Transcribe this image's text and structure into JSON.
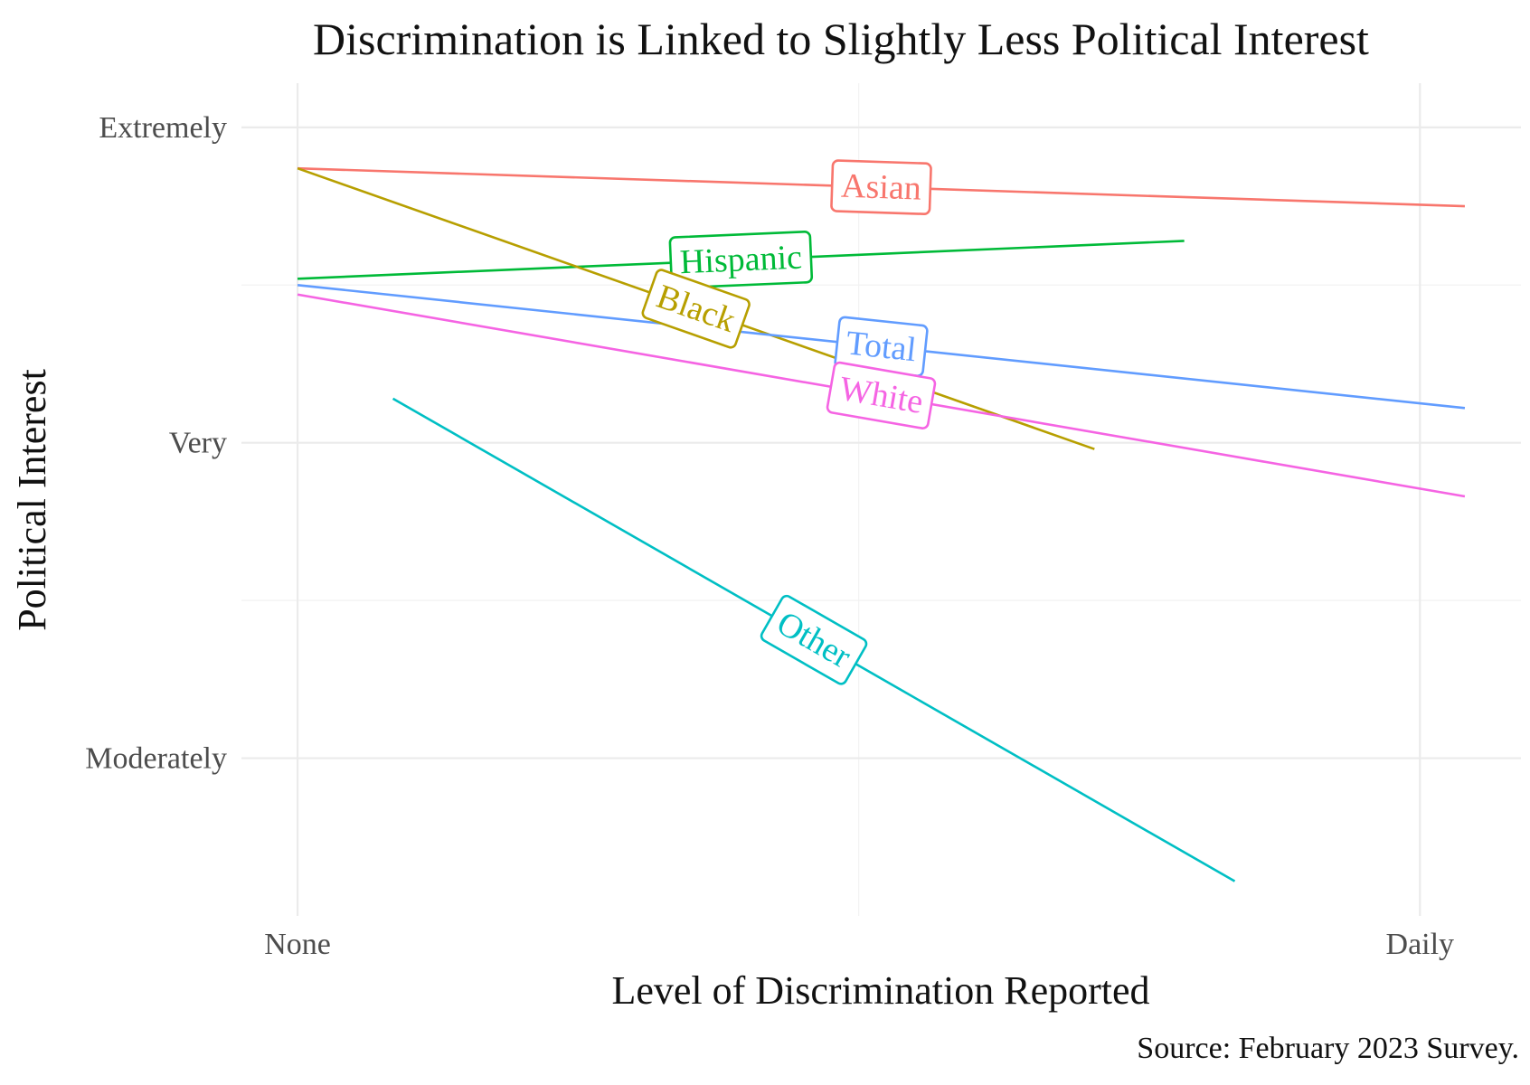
{
  "chart_data": {
    "type": "line",
    "title": "Discrimination is Linked to Slightly Less Political Interest",
    "xlabel": "Level of Discrimination Reported",
    "ylabel": "Political Interest",
    "caption": "Source: February 2023 Survey.",
    "x_ticks": [
      {
        "value": 0,
        "label": "None"
      },
      {
        "value": 1,
        "label": "Daily"
      }
    ],
    "y_ticks": [
      {
        "value": 3,
        "label": "Moderately"
      },
      {
        "value": 4,
        "label": "Very"
      },
      {
        "value": 5,
        "label": "Extremely"
      }
    ],
    "xlim": [
      -0.05,
      1.09
    ],
    "ylim": [
      2.5,
      5.14
    ],
    "grid": true,
    "legend": "direct labels on lines",
    "series": [
      {
        "name": "Asian",
        "color": "#F8766D",
        "x": [
          0,
          1.04
        ],
        "y": [
          4.87,
          4.75
        ],
        "label_x": 0.52
      },
      {
        "name": "Hispanic",
        "color": "#00BA38",
        "x": [
          0,
          0.79
        ],
        "y": [
          4.52,
          4.64
        ],
        "label_x": 0.395
      },
      {
        "name": "Black",
        "color": "#B79F00",
        "x": [
          0,
          0.71
        ],
        "y": [
          4.87,
          3.98
        ],
        "label_x": 0.355
      },
      {
        "name": "Total",
        "color": "#619CFF",
        "x": [
          0,
          1.04
        ],
        "y": [
          4.5,
          4.11
        ],
        "label_x": 0.52
      },
      {
        "name": "White",
        "color": "#F564E3",
        "x": [
          0,
          1.04
        ],
        "y": [
          4.47,
          3.83
        ],
        "label_x": 0.52
      },
      {
        "name": "Other",
        "color": "#00BFC4",
        "x": [
          0.085,
          0.835
        ],
        "y": [
          4.14,
          2.61
        ],
        "label_x": 0.46
      }
    ]
  }
}
